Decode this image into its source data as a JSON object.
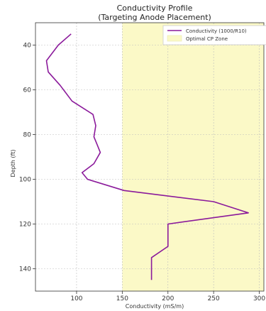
{
  "chart_data": {
    "type": "line",
    "title": "Conductivity Profile",
    "subtitle": "(Targeting Anode Placement)",
    "xlabel": "Conductivity (mS/m)",
    "ylabel": "Depth (ft)",
    "xlim": [
      55,
      305
    ],
    "ylim": [
      150,
      30
    ],
    "y_inverted": true,
    "x_ticks": [
      100,
      150,
      200,
      250,
      300
    ],
    "y_ticks": [
      40,
      60,
      80,
      100,
      120,
      140
    ],
    "grid": true,
    "legend_position": "top-right",
    "series": [
      {
        "name": "Conductivity (1000/R10)",
        "color": "#8b1a9b",
        "points": [
          {
            "x": 94,
            "y": 35
          },
          {
            "x": 80,
            "y": 40
          },
          {
            "x": 67,
            "y": 47
          },
          {
            "x": 69,
            "y": 52
          },
          {
            "x": 82,
            "y": 58
          },
          {
            "x": 95,
            "y": 65
          },
          {
            "x": 118,
            "y": 71
          },
          {
            "x": 121,
            "y": 76
          },
          {
            "x": 119,
            "y": 81
          },
          {
            "x": 122,
            "y": 84
          },
          {
            "x": 126,
            "y": 88
          },
          {
            "x": 119,
            "y": 93
          },
          {
            "x": 106,
            "y": 97
          },
          {
            "x": 112,
            "y": 100
          },
          {
            "x": 152,
            "y": 105
          },
          {
            "x": 250,
            "y": 110
          },
          {
            "x": 288,
            "y": 115
          },
          {
            "x": 200,
            "y": 120
          },
          {
            "x": 200,
            "y": 130
          },
          {
            "x": 182,
            "y": 135
          },
          {
            "x": 182,
            "y": 140
          },
          {
            "x": 182,
            "y": 145
          }
        ]
      }
    ],
    "zones": [
      {
        "name": "Optimal CP Zone",
        "x_start": 150,
        "x_end": 305,
        "color": "#fbf9c7"
      }
    ]
  }
}
